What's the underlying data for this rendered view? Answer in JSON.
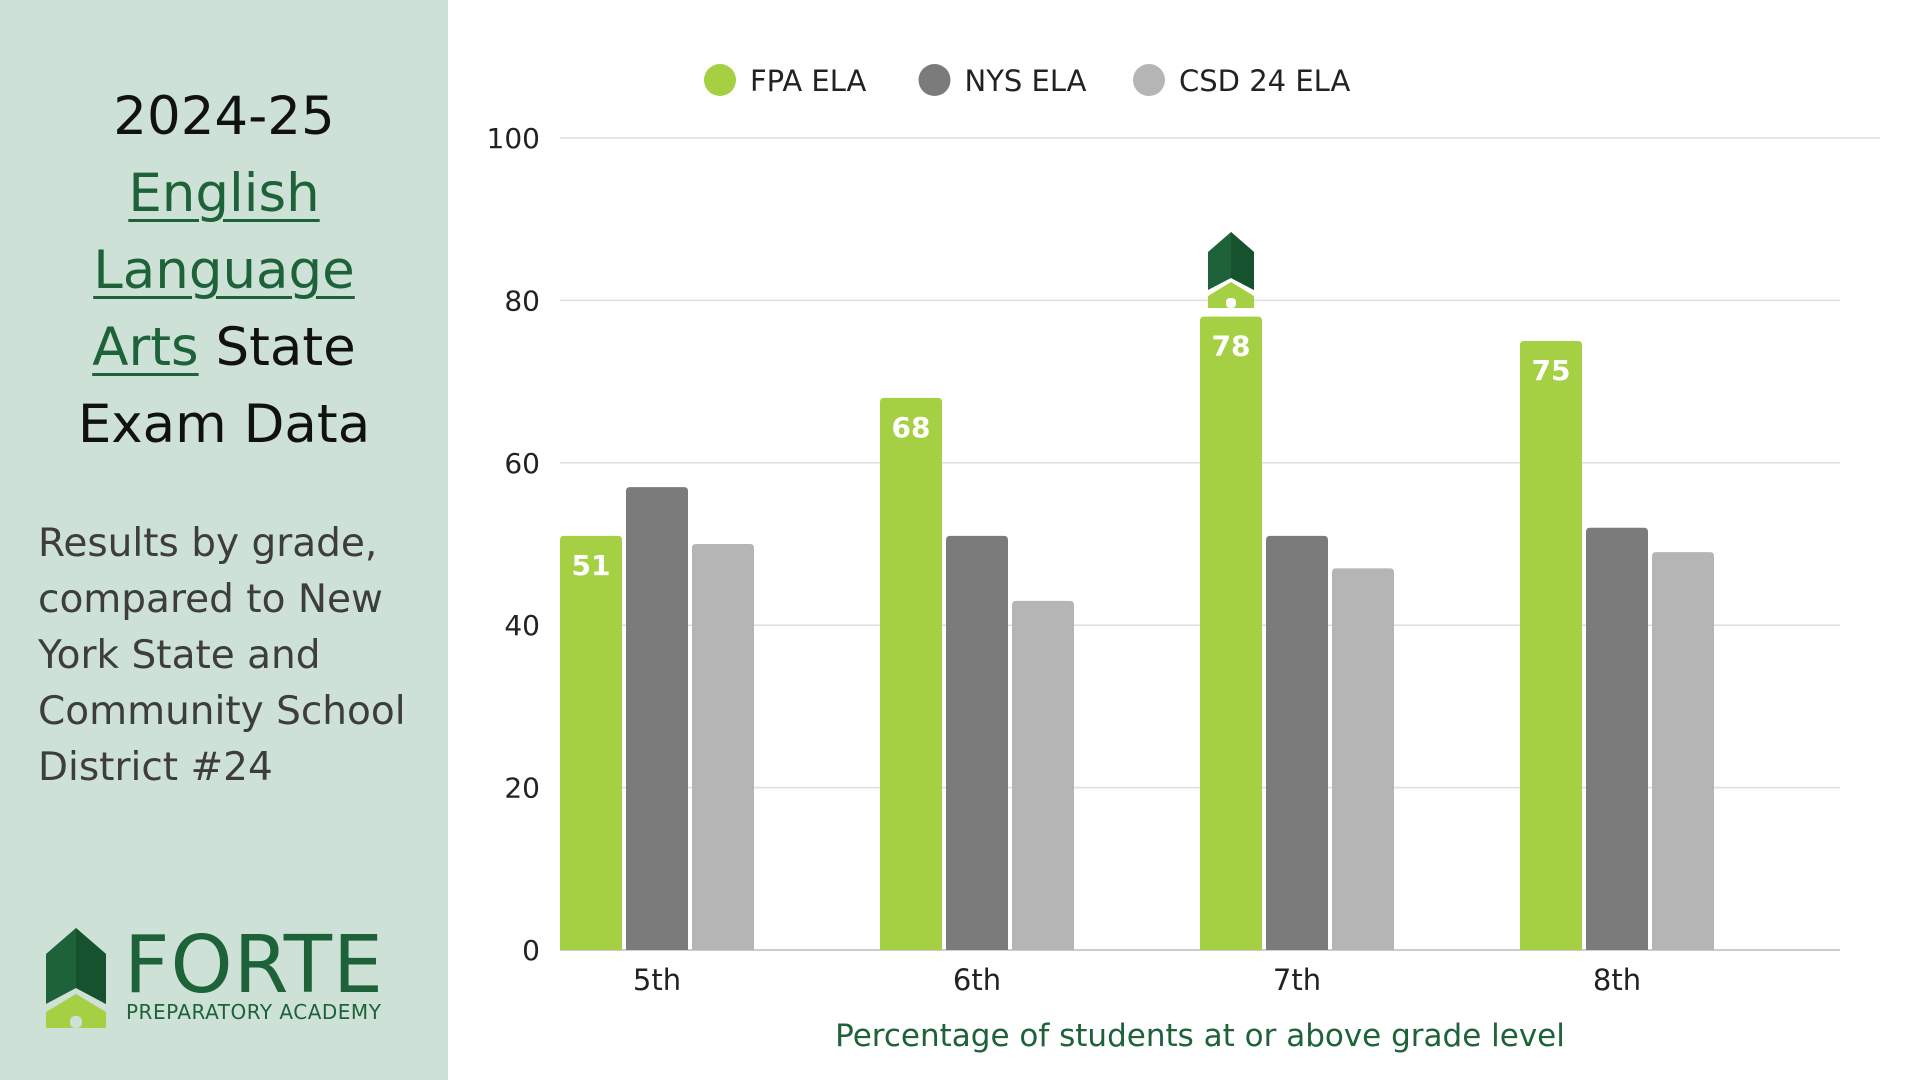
{
  "sidebar": {
    "title_line1": "2024-25",
    "title_link_1": "English",
    "title_link_2": "Language",
    "title_link_3": "Arts",
    "title_rest_3": "State",
    "title_line5": "Exam Data",
    "subtitle": "Results by grade, compared to New York State and Community School District #24",
    "logo_word": "FORTE",
    "logo_sub": "PREPARATORY ACADEMY"
  },
  "colors": {
    "sidebar_bg": "#cde1d7",
    "fpa": "#a6d043",
    "nys": "#7b7b7b",
    "csd": "#b5b5b5",
    "brand_green": "#1d6238",
    "gridline": "#dddddd"
  },
  "chart_data": {
    "type": "bar",
    "categories": [
      "5th",
      "6th",
      "7th",
      "8th"
    ],
    "series": [
      {
        "name": "FPA ELA",
        "values": [
          51,
          68,
          78,
          75
        ],
        "data_labels": [
          "51",
          "68",
          "78",
          "75"
        ],
        "color": "#a6d043"
      },
      {
        "name": "NYS ELA",
        "values": [
          57,
          51,
          51,
          52
        ],
        "color": "#7b7b7b"
      },
      {
        "name": "CSD 24 ELA",
        "values": [
          50,
          43,
          47,
          49
        ],
        "color": "#b5b5b5"
      }
    ],
    "ylim": [
      0,
      100
    ],
    "yticks": [
      0,
      20,
      40,
      60,
      80,
      100
    ],
    "xlabel": "Percentage of students at or above grade level",
    "ylabel": "",
    "grid": true,
    "legend": "top",
    "annotation_icon": "forte-logo-mark-icon"
  }
}
